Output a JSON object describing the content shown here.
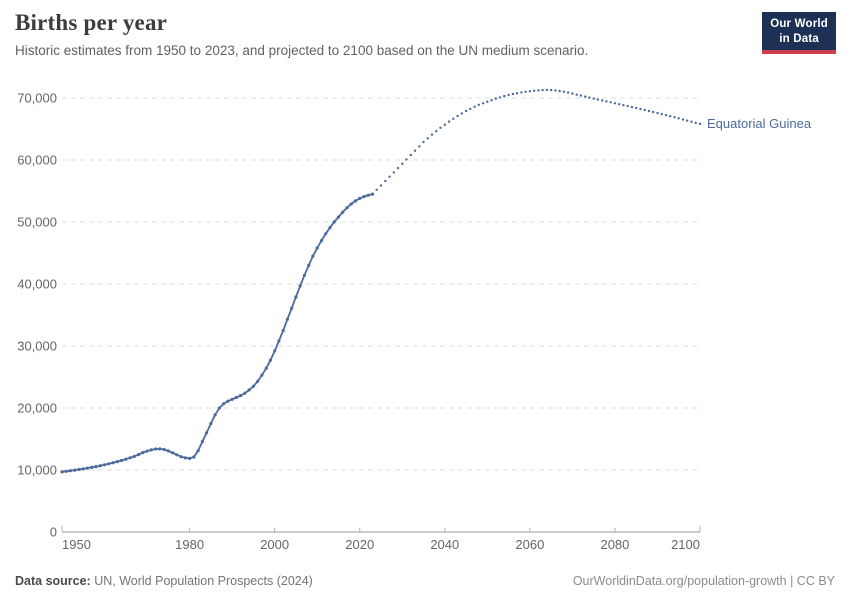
{
  "header": {
    "title": "Births per year",
    "subtitle": "Historic estimates from 1950 to 2023, and projected to 2100 based on the UN medium scenario.",
    "logo": {
      "line1": "Our World",
      "line2": "in Data",
      "bg_color": "#1d3156",
      "bar_color": "#cf3e4e"
    }
  },
  "chart_data": {
    "type": "line",
    "title": "Births per year",
    "entity_label": "Equatorial Guinea",
    "xlabel": "",
    "ylabel": "",
    "xlim": [
      1950,
      2100
    ],
    "ylim": [
      0,
      70000
    ],
    "grid": "dashed-horizontal",
    "legend_position": "end-of-line",
    "line_color": "#4c6a9c",
    "gridline_color": "#dddddd",
    "axis_color": "#999999",
    "axis_text_color": "#666666",
    "x_ticks": {
      "values": [
        1950,
        1980,
        2000,
        2020,
        2040,
        2060,
        2080,
        2100
      ],
      "labels": [
        "1950",
        "1980",
        "2000",
        "2020",
        "2040",
        "2060",
        "2080",
        "2100"
      ]
    },
    "y_ticks": {
      "values": [
        0,
        10000,
        20000,
        30000,
        40000,
        50000,
        60000,
        70000
      ],
      "labels": [
        "0",
        "10,000",
        "20,000",
        "30,000",
        "40,000",
        "50,000",
        "60,000",
        "70,000"
      ]
    },
    "series": [
      {
        "name": "historic",
        "style": "solid-with-markers",
        "start_year": 1950,
        "step_years": 1,
        "values": [
          9700,
          9790,
          9880,
          9980,
          10080,
          10190,
          10300,
          10420,
          10550,
          10690,
          10840,
          11000,
          11170,
          11350,
          11540,
          11740,
          11960,
          12200,
          12500,
          12800,
          13050,
          13250,
          13380,
          13400,
          13300,
          13080,
          12780,
          12450,
          12150,
          11950,
          11870,
          12100,
          13100,
          14600,
          16000,
          17500,
          18900,
          20000,
          20700,
          21100,
          21400,
          21700,
          22000,
          22400,
          22900,
          23500,
          24300,
          25300,
          26400,
          27700,
          29200,
          30800,
          32500,
          34300,
          36100,
          37900,
          39700,
          41400,
          43000,
          44500,
          45800,
          47000,
          48100,
          49100,
          50000,
          50800,
          51600,
          52300,
          52900,
          53400,
          53800,
          54100,
          54300,
          54500
        ]
      },
      {
        "name": "projected (UN medium scenario)",
        "style": "dotted",
        "start_year": 2024,
        "step_years": 1,
        "values": [
          55200,
          55900,
          56600,
          57300,
          58000,
          58700,
          59400,
          60100,
          60800,
          61500,
          62200,
          62900,
          63500,
          64100,
          64650,
          65200,
          65700,
          66200,
          66650,
          67100,
          67500,
          67900,
          68250,
          68600,
          68900,
          69150,
          69400,
          69650,
          69900,
          70100,
          70300,
          70480,
          70640,
          70780,
          70900,
          71000,
          71090,
          71170,
          71230,
          71270,
          71300,
          71280,
          71220,
          71130,
          71010,
          70870,
          70710,
          70540,
          70380,
          70220,
          70060,
          69900,
          69750,
          69600,
          69450,
          69300,
          69150,
          69000,
          68850,
          68700,
          68540,
          68380,
          68220,
          68060,
          67900,
          67740,
          67580,
          67410,
          67240,
          67070,
          66900,
          66720,
          66540,
          66360,
          66170,
          65990,
          65800
        ]
      }
    ]
  },
  "footer": {
    "source_label": "Data source:",
    "source": "UN, World Population Prospects (2024)",
    "credit": "OurWorldinData.org/population-growth | CC BY"
  }
}
